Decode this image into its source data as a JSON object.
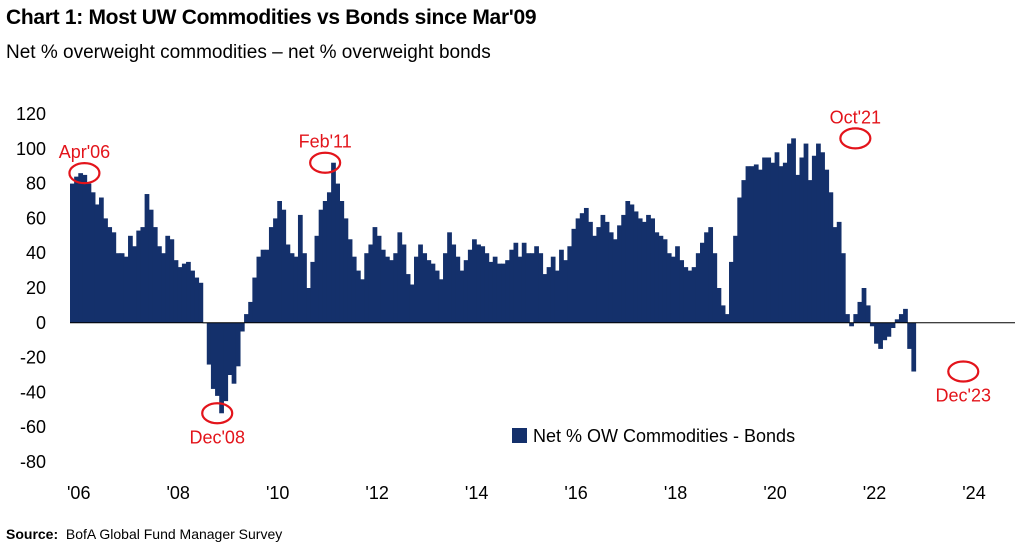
{
  "chart_data": {
    "type": "bar",
    "title": "Chart 1: Most UW Commodities vs Bonds since Mar'09",
    "subtitle": "Net % overweight commodities – net % overweight bonds",
    "source_label": "Source:",
    "source_text": "BofA Global Fund Manager Survey",
    "legend_position": "bottom-right",
    "grid": false,
    "ylim": [
      -80,
      120
    ],
    "xlim": [
      2006.0,
      2025.0
    ],
    "y_ticks": [
      "120",
      "100",
      "80",
      "60",
      "40",
      "20",
      "0",
      "-20",
      "-40",
      "-60",
      "-80"
    ],
    "x_ticks": [
      {
        "x": 2006,
        "label": "'06"
      },
      {
        "x": 2008,
        "label": "'08"
      },
      {
        "x": 2010,
        "label": "'10"
      },
      {
        "x": 2012,
        "label": "'12"
      },
      {
        "x": 2014,
        "label": "'14"
      },
      {
        "x": 2016,
        "label": "'16"
      },
      {
        "x": 2018,
        "label": "'18"
      },
      {
        "x": 2020,
        "label": "'20"
      },
      {
        "x": 2022,
        "label": "'22"
      },
      {
        "x": 2024,
        "label": "'24"
      }
    ],
    "series": [
      {
        "name": "Net % OW Commodities - Bonds",
        "color": "#14306b",
        "start": "2006-01",
        "monthly_values": [
          80,
          84,
          86,
          85,
          80,
          75,
          68,
          72,
          60,
          55,
          52,
          40,
          40,
          38,
          50,
          44,
          53,
          55,
          74,
          65,
          55,
          44,
          40,
          50,
          48,
          36,
          32,
          34,
          35,
          30,
          26,
          23,
          0,
          -24,
          -38,
          -42,
          -52,
          -45,
          -30,
          -35,
          -25,
          -5,
          5,
          12,
          26,
          38,
          42,
          42,
          55,
          60,
          70,
          65,
          45,
          40,
          38,
          62,
          40,
          20,
          35,
          50,
          65,
          70,
          75,
          92,
          80,
          70,
          60,
          48,
          38,
          30,
          25,
          40,
          45,
          55,
          50,
          42,
          38,
          36,
          40,
          52,
          45,
          28,
          22,
          38,
          45,
          40,
          36,
          34,
          30,
          25,
          40,
          52,
          45,
          38,
          30,
          36,
          42,
          48,
          45,
          44,
          40,
          35,
          38,
          34,
          34,
          36,
          42,
          46,
          38,
          46,
          40,
          40,
          44,
          40,
          28,
          32,
          38,
          30,
          42,
          36,
          44,
          54,
          60,
          63,
          66,
          58,
          50,
          55,
          62,
          58,
          52,
          48,
          56,
          62,
          70,
          68,
          64,
          60,
          58,
          62,
          60,
          52,
          50,
          48,
          40,
          38,
          44,
          36,
          32,
          30,
          32,
          40,
          46,
          52,
          55,
          40,
          20,
          10,
          5,
          35,
          50,
          72,
          82,
          90,
          90,
          91,
          88,
          95,
          95,
          92,
          98,
          90,
          92,
          103,
          106,
          85,
          95,
          103,
          82,
          96,
          103,
          98,
          88,
          75,
          55,
          58,
          40,
          5,
          -2,
          5,
          12,
          20,
          10,
          -2,
          -12,
          -15,
          -10,
          -8,
          -3,
          2,
          5,
          8,
          -15,
          -28
        ]
      }
    ],
    "annotations": [
      {
        "label": "Apr'06",
        "x": 2006.29,
        "y": 86,
        "label_side": "above"
      },
      {
        "label": "Dec'08",
        "x": 2008.96,
        "y": -52,
        "label_side": "below"
      },
      {
        "label": "Feb'11",
        "x": 2011.13,
        "y": 92,
        "label_side": "above"
      },
      {
        "label": "Oct'21",
        "x": 2021.79,
        "y": 106,
        "label_side": "above"
      },
      {
        "label": "Dec'23",
        "x": 2023.96,
        "y": -28,
        "label_side": "below"
      }
    ],
    "colors": {
      "bars": "#14306b",
      "highlight": "#e3141b",
      "axis": "#000000"
    }
  }
}
